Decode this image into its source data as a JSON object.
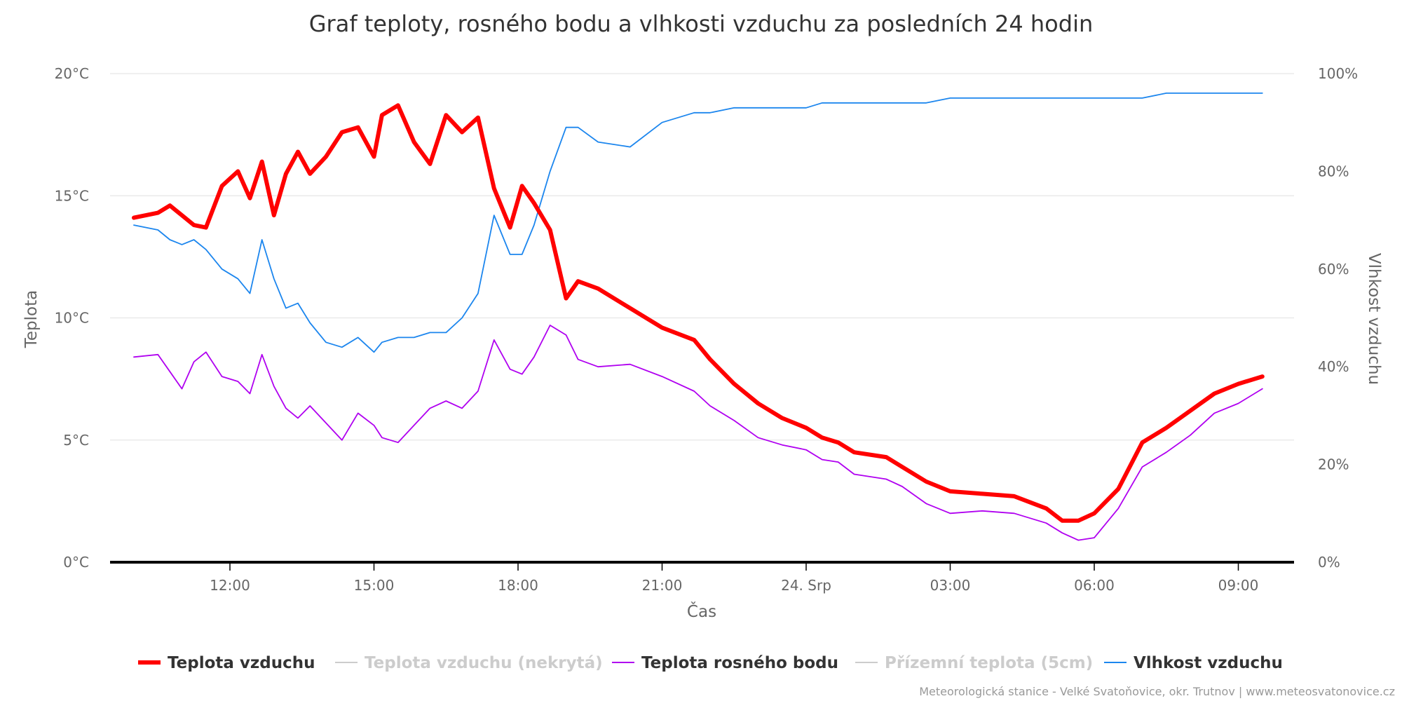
{
  "chart_data": {
    "type": "line",
    "title": "Graf teploty, rosného bodu a vlhkosti vzduchu za posledních 24 hodin",
    "xlabel": "Čas",
    "ylabel_left": "Teplota",
    "ylabel_right": "Vlhkost vzduchu",
    "ylim_left": [
      0,
      20
    ],
    "ylim_right": [
      0,
      100
    ],
    "x_ticks": [
      "12:00",
      "15:00",
      "18:00",
      "21:00",
      "24. Srp",
      "03:00",
      "06:00",
      "09:00"
    ],
    "y_ticks_left": [
      "0°C",
      "5°C",
      "10°C",
      "15°C",
      "20°C"
    ],
    "y_ticks_right": [
      "0%",
      "20%",
      "40%",
      "60%",
      "80%",
      "100%"
    ],
    "grid": true,
    "legend_position": "bottom",
    "series": [
      {
        "name": "Teplota vzduchu",
        "axis": "left",
        "color": "#ff0000",
        "visible": true,
        "points": [
          [
            "10:00",
            14.1
          ],
          [
            "10:30",
            14.3
          ],
          [
            "10:45",
            14.6
          ],
          [
            "11:15",
            13.8
          ],
          [
            "11:30",
            13.7
          ],
          [
            "11:50",
            15.4
          ],
          [
            "12:10",
            16.0
          ],
          [
            "12:25",
            14.9
          ],
          [
            "12:40",
            16.4
          ],
          [
            "12:55",
            14.2
          ],
          [
            "13:10",
            15.9
          ],
          [
            "13:25",
            16.8
          ],
          [
            "13:40",
            15.9
          ],
          [
            "14:00",
            16.6
          ],
          [
            "14:20",
            17.6
          ],
          [
            "14:40",
            17.8
          ],
          [
            "15:00",
            16.6
          ],
          [
            "15:10",
            18.3
          ],
          [
            "15:30",
            18.7
          ],
          [
            "15:50",
            17.2
          ],
          [
            "16:10",
            16.3
          ],
          [
            "16:30",
            18.3
          ],
          [
            "16:50",
            17.6
          ],
          [
            "17:10",
            18.2
          ],
          [
            "17:30",
            15.3
          ],
          [
            "17:50",
            13.7
          ],
          [
            "18:05",
            15.4
          ],
          [
            "18:20",
            14.7
          ],
          [
            "18:40",
            13.6
          ],
          [
            "19:00",
            10.8
          ],
          [
            "19:15",
            11.5
          ],
          [
            "19:40",
            11.2
          ],
          [
            "20:20",
            10.4
          ],
          [
            "21:00",
            9.6
          ],
          [
            "21:40",
            9.1
          ],
          [
            "22:00",
            8.3
          ],
          [
            "22:30",
            7.3
          ],
          [
            "23:00",
            6.5
          ],
          [
            "23:30",
            5.9
          ],
          [
            "24:00",
            5.5
          ],
          [
            "00:20",
            5.1
          ],
          [
            "00:40",
            4.9
          ],
          [
            "01:00",
            4.5
          ],
          [
            "01:40",
            4.3
          ],
          [
            "02:00",
            3.9
          ],
          [
            "02:30",
            3.3
          ],
          [
            "03:00",
            2.9
          ],
          [
            "03:40",
            2.8
          ],
          [
            "04:20",
            2.7
          ],
          [
            "05:00",
            2.2
          ],
          [
            "05:20",
            1.7
          ],
          [
            "05:40",
            1.7
          ],
          [
            "06:00",
            2.0
          ],
          [
            "06:30",
            3.0
          ],
          [
            "07:00",
            4.9
          ],
          [
            "07:30",
            5.5
          ],
          [
            "08:00",
            6.2
          ],
          [
            "08:30",
            6.9
          ],
          [
            "09:00",
            7.3
          ],
          [
            "09:30",
            7.6
          ]
        ]
      },
      {
        "name": "Teplota vzduchu (nekrytá)",
        "axis": "left",
        "color": "#cccccc",
        "visible": false,
        "points": []
      },
      {
        "name": "Teplota rosného bodu",
        "axis": "left",
        "color": "#b000f0",
        "visible": true,
        "points": [
          [
            "10:00",
            8.4
          ],
          [
            "10:30",
            8.5
          ],
          [
            "10:45",
            7.8
          ],
          [
            "11:00",
            7.1
          ],
          [
            "11:15",
            8.2
          ],
          [
            "11:30",
            8.6
          ],
          [
            "11:50",
            7.6
          ],
          [
            "12:10",
            7.4
          ],
          [
            "12:25",
            6.9
          ],
          [
            "12:40",
            8.5
          ],
          [
            "12:55",
            7.2
          ],
          [
            "13:10",
            6.3
          ],
          [
            "13:25",
            5.9
          ],
          [
            "13:40",
            6.4
          ],
          [
            "14:00",
            5.7
          ],
          [
            "14:20",
            5.0
          ],
          [
            "14:40",
            6.1
          ],
          [
            "15:00",
            5.6
          ],
          [
            "15:10",
            5.1
          ],
          [
            "15:30",
            4.9
          ],
          [
            "15:50",
            5.6
          ],
          [
            "16:10",
            6.3
          ],
          [
            "16:30",
            6.6
          ],
          [
            "16:50",
            6.3
          ],
          [
            "17:10",
            7.0
          ],
          [
            "17:30",
            9.1
          ],
          [
            "17:50",
            7.9
          ],
          [
            "18:05",
            7.7
          ],
          [
            "18:20",
            8.4
          ],
          [
            "18:40",
            9.7
          ],
          [
            "19:00",
            9.3
          ],
          [
            "19:15",
            8.3
          ],
          [
            "19:40",
            8.0
          ],
          [
            "20:20",
            8.1
          ],
          [
            "21:00",
            7.6
          ],
          [
            "21:40",
            7.0
          ],
          [
            "22:00",
            6.4
          ],
          [
            "22:30",
            5.8
          ],
          [
            "23:00",
            5.1
          ],
          [
            "23:30",
            4.8
          ],
          [
            "24:00",
            4.6
          ],
          [
            "00:20",
            4.2
          ],
          [
            "00:40",
            4.1
          ],
          [
            "01:00",
            3.6
          ],
          [
            "01:40",
            3.4
          ],
          [
            "02:00",
            3.1
          ],
          [
            "02:30",
            2.4
          ],
          [
            "03:00",
            2.0
          ],
          [
            "03:40",
            2.1
          ],
          [
            "04:20",
            2.0
          ],
          [
            "05:00",
            1.6
          ],
          [
            "05:20",
            1.2
          ],
          [
            "05:40",
            0.9
          ],
          [
            "06:00",
            1.0
          ],
          [
            "06:30",
            2.2
          ],
          [
            "07:00",
            3.9
          ],
          [
            "07:30",
            4.5
          ],
          [
            "08:00",
            5.2
          ],
          [
            "08:30",
            6.1
          ],
          [
            "09:00",
            6.5
          ],
          [
            "09:30",
            7.1
          ]
        ]
      },
      {
        "name": "Přízemní teplota (5cm)",
        "axis": "left",
        "color": "#cccccc",
        "visible": false,
        "points": []
      },
      {
        "name": "Vlhkost vzduchu",
        "axis": "right",
        "color": "#1c86ee",
        "visible": true,
        "points": [
          [
            "10:00",
            69
          ],
          [
            "10:30",
            68
          ],
          [
            "10:45",
            66
          ],
          [
            "11:00",
            65
          ],
          [
            "11:15",
            66
          ],
          [
            "11:30",
            64
          ],
          [
            "11:50",
            60
          ],
          [
            "12:10",
            58
          ],
          [
            "12:25",
            55
          ],
          [
            "12:40",
            66
          ],
          [
            "12:55",
            58
          ],
          [
            "13:10",
            52
          ],
          [
            "13:25",
            53
          ],
          [
            "13:40",
            49
          ],
          [
            "14:00",
            45
          ],
          [
            "14:20",
            44
          ],
          [
            "14:40",
            46
          ],
          [
            "15:00",
            43
          ],
          [
            "15:10",
            45
          ],
          [
            "15:30",
            46
          ],
          [
            "15:50",
            46
          ],
          [
            "16:10",
            47
          ],
          [
            "16:30",
            47
          ],
          [
            "16:50",
            50
          ],
          [
            "17:10",
            55
          ],
          [
            "17:30",
            71
          ],
          [
            "17:50",
            63
          ],
          [
            "18:05",
            63
          ],
          [
            "18:20",
            69
          ],
          [
            "18:40",
            80
          ],
          [
            "19:00",
            89
          ],
          [
            "19:15",
            89
          ],
          [
            "19:40",
            86
          ],
          [
            "20:20",
            85
          ],
          [
            "21:00",
            90
          ],
          [
            "21:40",
            92
          ],
          [
            "22:00",
            92
          ],
          [
            "22:30",
            93
          ],
          [
            "23:00",
            93
          ],
          [
            "23:30",
            93
          ],
          [
            "24:00",
            93
          ],
          [
            "00:20",
            94
          ],
          [
            "00:40",
            94
          ],
          [
            "01:00",
            94
          ],
          [
            "01:40",
            94
          ],
          [
            "02:00",
            94
          ],
          [
            "02:30",
            94
          ],
          [
            "03:00",
            95
          ],
          [
            "03:40",
            95
          ],
          [
            "04:20",
            95
          ],
          [
            "05:00",
            95
          ],
          [
            "05:20",
            95
          ],
          [
            "05:40",
            95
          ],
          [
            "06:00",
            95
          ],
          [
            "06:30",
            95
          ],
          [
            "07:00",
            95
          ],
          [
            "07:30",
            96
          ],
          [
            "08:00",
            96
          ],
          [
            "08:30",
            96
          ],
          [
            "09:00",
            96
          ],
          [
            "09:30",
            96
          ]
        ]
      }
    ]
  },
  "credits": "Meteorologická stanice - Velké Svatoňovice, okr. Trutnov | www.meteosvatonovice.cz"
}
